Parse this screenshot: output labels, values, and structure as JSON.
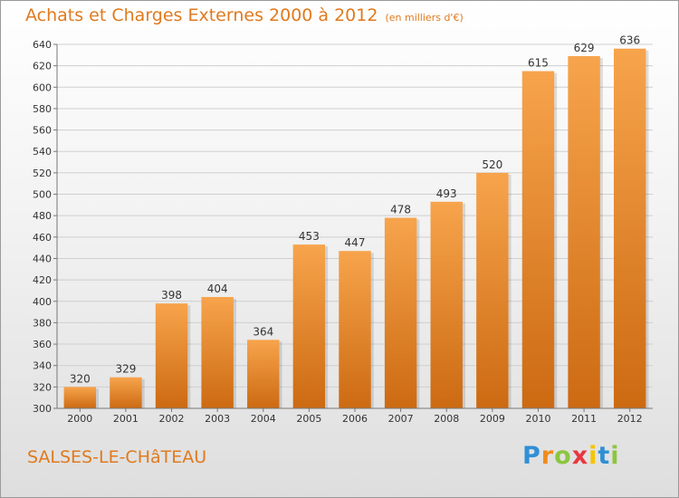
{
  "title": "Achats et Charges Externes 2000 à 2012",
  "unit_note": "(en milliers d'€)",
  "commune": "SALSES-LE-CHâTEAU",
  "logo": {
    "letters": [
      "P",
      "r",
      "o",
      "x",
      "i",
      "t",
      "i"
    ],
    "colors": [
      "#2f8fd6",
      "#f08b1d",
      "#8cc63f",
      "#e8373f",
      "#f5c400",
      "#2f8fd6",
      "#8cc63f"
    ]
  },
  "colors": {
    "accent": "#e07a1e",
    "bar_top": "#f7a44c",
    "bar_bottom": "#cc6a12"
  },
  "chart_data": {
    "type": "bar",
    "categories": [
      "2000",
      "2001",
      "2002",
      "2003",
      "2004",
      "2005",
      "2006",
      "2007",
      "2008",
      "2009",
      "2010",
      "2011",
      "2012"
    ],
    "values": [
      320,
      329,
      398,
      404,
      364,
      453,
      447,
      478,
      493,
      520,
      615,
      629,
      636
    ],
    "ylim": [
      300,
      640
    ],
    "yticks": [
      300,
      320,
      340,
      360,
      380,
      400,
      420,
      440,
      460,
      480,
      500,
      520,
      540,
      560,
      580,
      600,
      620,
      640
    ],
    "grid": true,
    "legend": "none"
  }
}
